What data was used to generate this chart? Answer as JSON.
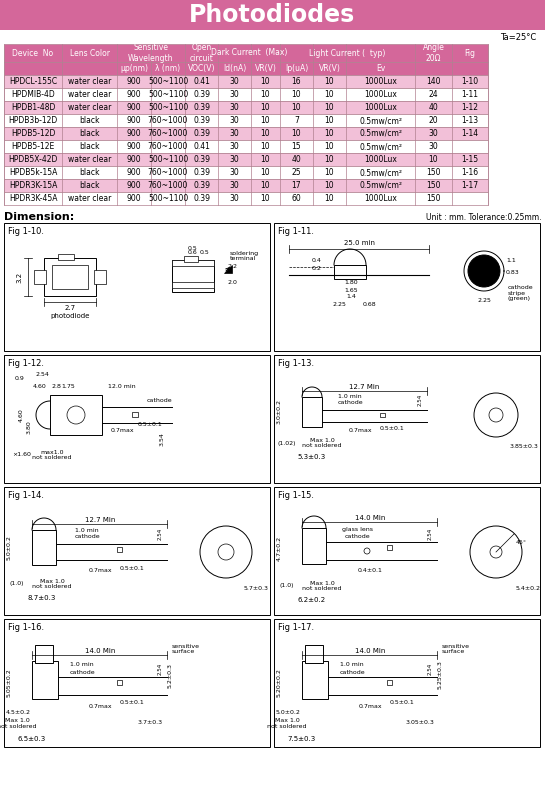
{
  "title": "Photodiodes",
  "title_bg": "#d4679a",
  "title_color": "white",
  "ta_text": "Ta=25°C",
  "table_header_bg": "#d4679a",
  "table_header_color": "white",
  "table_odd_bg": "#f2c0d8",
  "table_even_bg": "#ffffff",
  "table_border": "#b08090",
  "rows": [
    [
      "HPDCL-155C",
      "water clear",
      "900",
      "500~1100",
      "0.41",
      "30",
      "10",
      "16",
      "10",
      "1000Lux",
      "140",
      "1-10"
    ],
    [
      "HPDMIB-4D",
      "water clear",
      "900",
      "500~1100",
      "0.39",
      "30",
      "10",
      "10",
      "10",
      "1000Lux",
      "24",
      "1-11"
    ],
    [
      "HPDB1-48D",
      "water clear",
      "900",
      "500~1100",
      "0.39",
      "30",
      "10",
      "10",
      "10",
      "1000Lux",
      "40",
      "1-12"
    ],
    [
      "HPDB3b-12D",
      "black",
      "900",
      "760~1000",
      "0.39",
      "30",
      "10",
      "7",
      "10",
      "0.5mw/cm²",
      "20",
      "1-13"
    ],
    [
      "HPDB5-12D",
      "black",
      "900",
      "760~1000",
      "0.39",
      "30",
      "10",
      "10",
      "10",
      "0.5mw/cm²",
      "30",
      "1-14"
    ],
    [
      "HPDB5-12E",
      "black",
      "900",
      "760~1000",
      "0.41",
      "30",
      "10",
      "15",
      "10",
      "0.5mw/cm²",
      "30",
      ""
    ],
    [
      "HPDB5X-42D",
      "water clear",
      "900",
      "500~1100",
      "0.39",
      "30",
      "10",
      "40",
      "10",
      "1000Lux",
      "10",
      "1-15"
    ],
    [
      "HPDB5k-15A",
      "black",
      "900",
      "760~1000",
      "0.39",
      "30",
      "10",
      "25",
      "10",
      "0.5mw/cm²",
      "150",
      "1-16"
    ],
    [
      "HPDR3K-15A",
      "black",
      "900",
      "760~1000",
      "0.39",
      "30",
      "10",
      "17",
      "10",
      "0.5mw/cm²",
      "150",
      "1-17"
    ],
    [
      "HPDR3K-45A",
      "water clear",
      "900",
      "500~1100",
      "0.39",
      "30",
      "10",
      "60",
      "10",
      "1000Lux",
      "150",
      ""
    ]
  ],
  "dimension_label": "Dimension:",
  "unit_label": "Unit : mm. Tolerance:0.25mm.",
  "fig_labels": [
    "Fig 1-10.",
    "Fig 1-11.",
    "Fig 1-12.",
    "Fig 1-13.",
    "Fig 1-14.",
    "Fig 1-15.",
    "Fig 1-16.",
    "Fig 1-17."
  ]
}
